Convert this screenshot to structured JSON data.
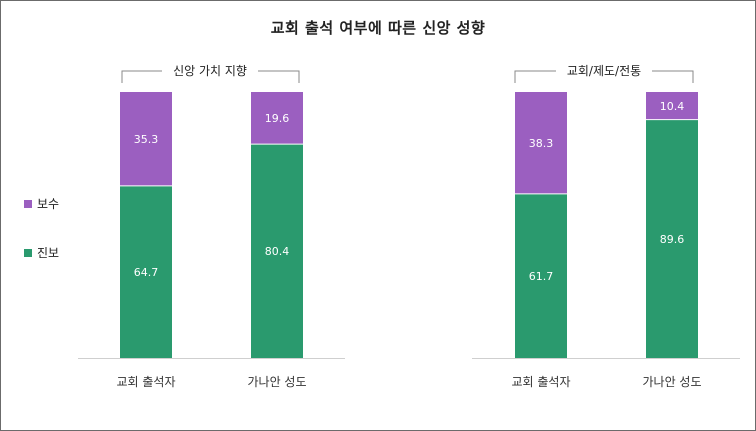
{
  "chart_data": {
    "type": "bar",
    "stacked": true,
    "percent_stacked": true,
    "title": "교회 출석 여부에 따른 신앙 성향",
    "groups": [
      {
        "label": "신앙 가치 지향",
        "categories": [
          "교회 출석자",
          "가나안 성도"
        ]
      },
      {
        "label": "교회/제도/전통",
        "categories": [
          "교회 출석자",
          "가나안 성도"
        ]
      }
    ],
    "categories": [
      "교회 출석자",
      "가나안 성도",
      "교회 출석자",
      "가나안 성도"
    ],
    "series": [
      {
        "name": "진보",
        "color": "#2a9a6e",
        "values": [
          64.7,
          80.4,
          61.7,
          89.6
        ]
      },
      {
        "name": "보수",
        "color": "#9b5fc0",
        "values": [
          35.3,
          19.6,
          38.3,
          10.4
        ]
      }
    ],
    "ylim": [
      0,
      100
    ],
    "grid": false,
    "legend_position": "left"
  }
}
